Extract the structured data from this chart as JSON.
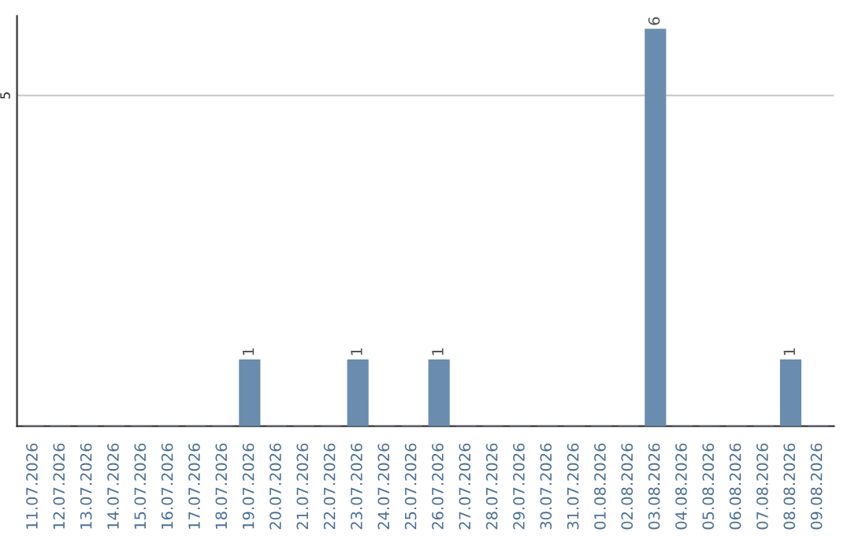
{
  "chart_data": {
    "type": "bar",
    "categories": [
      "11.07.2026",
      "12.07.2026",
      "13.07.2026",
      "14.07.2026",
      "15.07.2026",
      "16.07.2026",
      "17.07.2026",
      "18.07.2026",
      "19.07.2026",
      "20.07.2026",
      "21.07.2026",
      "22.07.2026",
      "23.07.2026",
      "24.07.2026",
      "25.07.2026",
      "26.07.2026",
      "27.07.2026",
      "28.07.2026",
      "29.07.2026",
      "30.07.2026",
      "31.07.2026",
      "01.08.2026",
      "02.08.2026",
      "03.08.2026",
      "04.08.2026",
      "05.08.2026",
      "06.08.2026",
      "07.08.2026",
      "08.08.2026",
      "09.08.2026"
    ],
    "values": [
      0,
      0,
      0,
      0,
      0,
      0,
      0,
      0,
      1,
      0,
      0,
      0,
      1,
      0,
      0,
      1,
      0,
      0,
      0,
      0,
      0,
      0,
      0,
      6,
      0,
      0,
      0,
      0,
      1,
      0
    ],
    "value_labels": [
      null,
      null,
      null,
      null,
      null,
      null,
      null,
      null,
      "1",
      null,
      null,
      null,
      "1",
      null,
      null,
      "1",
      null,
      null,
      null,
      null,
      null,
      null,
      null,
      "6",
      null,
      null,
      null,
      null,
      "1",
      null
    ],
    "color": "#6a8caf",
    "ylim": [
      0,
      6.2
    ],
    "yticks": [
      5
    ],
    "grid": "y"
  }
}
